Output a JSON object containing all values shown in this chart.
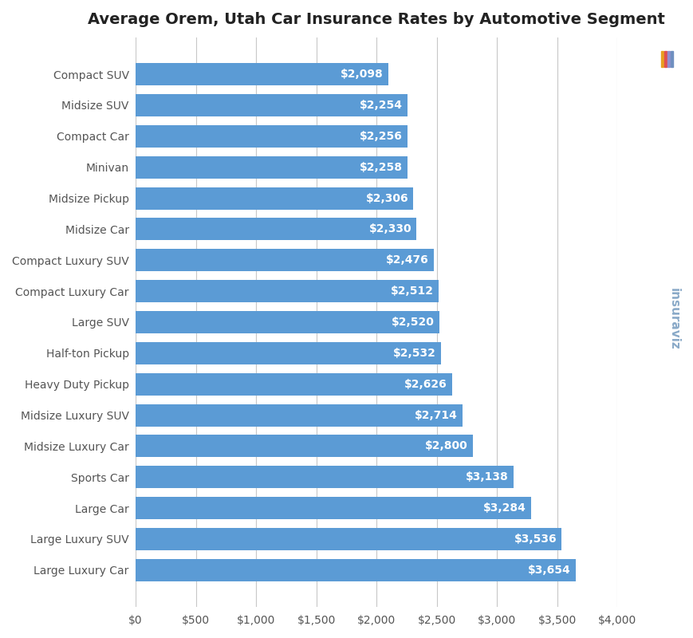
{
  "title": "Average Orem, Utah Car Insurance Rates by Automotive Segment",
  "categories": [
    "Large Luxury Car",
    "Large Luxury SUV",
    "Large Car",
    "Sports Car",
    "Midsize Luxury Car",
    "Midsize Luxury SUV",
    "Heavy Duty Pickup",
    "Half-ton Pickup",
    "Large SUV",
    "Compact Luxury Car",
    "Compact Luxury SUV",
    "Midsize Car",
    "Midsize Pickup",
    "Minivan",
    "Compact Car",
    "Midsize SUV",
    "Compact SUV"
  ],
  "values": [
    3654,
    3536,
    3284,
    3138,
    2800,
    2714,
    2626,
    2532,
    2520,
    2512,
    2476,
    2330,
    2306,
    2258,
    2256,
    2254,
    2098
  ],
  "bar_color": "#5b9bd5",
  "label_color": "#ffffff",
  "background_color": "#ffffff",
  "grid_color": "#c8c8c8",
  "title_fontsize": 14,
  "label_fontsize": 10,
  "tick_fontsize": 10,
  "xlim": [
    0,
    4000
  ],
  "xticks": [
    0,
    500,
    1000,
    1500,
    2000,
    2500,
    3000,
    3500,
    4000
  ],
  "bar_height": 0.72,
  "watermark_text": "insuraviz",
  "watermark_color": "#8aaac8",
  "logo_colors": [
    "#e8a020",
    "#e05050",
    "#9090d0",
    "#7090c0"
  ]
}
